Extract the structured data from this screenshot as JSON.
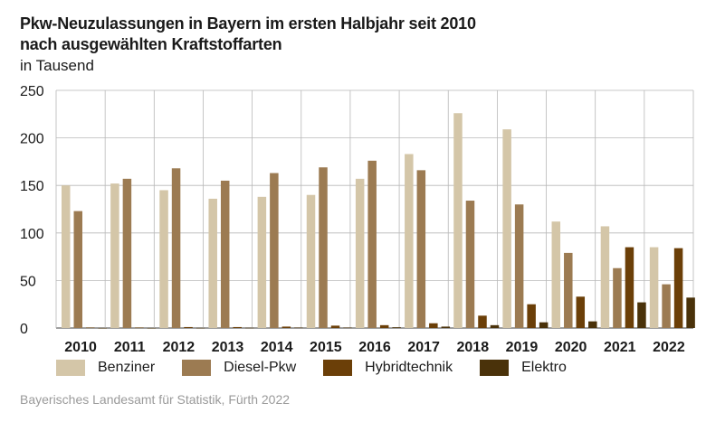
{
  "header": {
    "title_line1": "Pkw-Neuzulassungen in Bayern im ersten Halbjahr seit 2010",
    "title_line2": "nach ausgewählten Kraftstoffarten",
    "unit": "in Tausend"
  },
  "source": "Bayerisches Landesamt für Statistik, Fürth 2022",
  "chart_data": {
    "type": "bar",
    "categories": [
      "2010",
      "2011",
      "2012",
      "2013",
      "2014",
      "2015",
      "2016",
      "2017",
      "2018",
      "2019",
      "2020",
      "2021",
      "2022"
    ],
    "series": [
      {
        "name": "Benziner",
        "color": "#d4c6a8",
        "values": [
          150,
          152,
          145,
          136,
          138,
          140,
          157,
          183,
          226,
          209,
          112,
          107,
          85
        ]
      },
      {
        "name": "Diesel-Pkw",
        "color": "#9c7b52",
        "values": [
          123,
          157,
          168,
          155,
          163,
          169,
          176,
          166,
          134,
          130,
          79,
          63,
          46
        ]
      },
      {
        "name": "Hybridtechnik",
        "color": "#6b3f08",
        "values": [
          0.5,
          0.5,
          1,
          1,
          1.5,
          2.5,
          3,
          5,
          13,
          25,
          33,
          85,
          84
        ]
      },
      {
        "name": "Elektro",
        "color": "#4a320a",
        "values": [
          0.1,
          0.1,
          0.2,
          0.3,
          0.5,
          0.5,
          0.8,
          1.5,
          3,
          6,
          7,
          27,
          32
        ]
      }
    ],
    "yticks": [
      0,
      50,
      100,
      150,
      200,
      250
    ],
    "ylim": [
      0,
      250
    ],
    "grid": true,
    "legend_position": "bottom"
  }
}
